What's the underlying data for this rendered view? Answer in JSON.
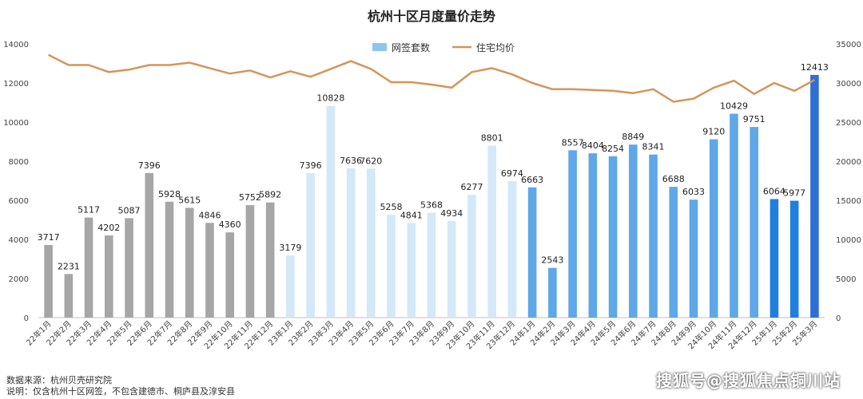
{
  "footer": {
    "source": "数据来源：杭州贝壳研究院",
    "note": "说明：仅含杭州十区网签，不包含建德市、桐庐县及淳安县"
  },
  "watermark": "搜狐号@搜狐焦点铜川站",
  "chart_data": {
    "type": "bar",
    "title": "杭州十区月度量价走势",
    "categories": [
      "22年1月",
      "22年2月",
      "22年3月",
      "22年4月",
      "22年5月",
      "22年6月",
      "22年7月",
      "22年8月",
      "22年9月",
      "22年10月",
      "22年11月",
      "22年12月",
      "23年1月",
      "23年2月",
      "23年3月",
      "23年4月",
      "23年5月",
      "23年6月",
      "23年7月",
      "23年8月",
      "23年9月",
      "23年10月",
      "23年11月",
      "23年12月",
      "24年1月",
      "24年2月",
      "24年3月",
      "24年4月",
      "24年5月",
      "24年6月",
      "24年7月",
      "24年8月",
      "24年9月",
      "24年10月",
      "24年11月",
      "24年12月",
      "25年1月",
      "25年2月",
      "25年3月"
    ],
    "y_left": {
      "min": 0,
      "max": 14000,
      "ticks": [
        0,
        2000,
        4000,
        6000,
        8000,
        10000,
        12000,
        14000
      ]
    },
    "y_right": {
      "min": 0,
      "max": 35000,
      "ticks": [
        0,
        5000,
        10000,
        15000,
        20000,
        25000,
        30000,
        35000
      ]
    },
    "legend_position": "top",
    "grid": false,
    "series": [
      {
        "name": "网签套数",
        "kind": "bar",
        "axis": "left",
        "legend_color": "#8ec5ee",
        "values": [
          3717,
          2231,
          5117,
          4202,
          5087,
          7396,
          5928,
          5615,
          4846,
          4360,
          5752,
          5892,
          3179,
          7396,
          10828,
          7636,
          7620,
          5258,
          4841,
          5368,
          4934,
          6277,
          8801,
          6974,
          6663,
          2543,
          8557,
          8404,
          8254,
          8849,
          8341,
          6688,
          6033,
          9120,
          10429,
          9751,
          6064,
          5977,
          12413
        ],
        "labels": [
          "3717",
          "2231",
          "5117",
          "4202",
          "5087",
          "7396",
          "5928",
          "5615",
          "4846",
          "4360",
          "5752",
          "5892",
          "3179",
          "7396",
          "10828",
          "7636",
          "7620",
          "5258",
          "4841",
          "5368",
          "4934",
          "6277",
          "8801",
          "6974",
          "6663",
          "2543",
          "8557",
          "8404",
          "8254",
          "8849",
          "8341",
          "6688",
          "6033",
          "9120",
          "10429",
          "9751",
          "6064",
          "5977",
          "12413"
        ],
        "group_colors": [
          {
            "from": 0,
            "to": 11,
            "color": "#a6a6a6"
          },
          {
            "from": 12,
            "to": 23,
            "color": "#d3e8f8"
          },
          {
            "from": 24,
            "to": 35,
            "color": "#5ea7e8"
          },
          {
            "from": 36,
            "to": 37,
            "color": "#1f7fe0"
          },
          {
            "from": 38,
            "to": 38,
            "color": "#2e6fd6"
          }
        ]
      },
      {
        "name": "住宅均价",
        "kind": "line",
        "axis": "right",
        "color": "#d4955a",
        "values": [
          33600,
          32300,
          32300,
          31400,
          31700,
          32300,
          32300,
          32600,
          31900,
          31200,
          31600,
          30700,
          31500,
          30800,
          31800,
          32800,
          31800,
          30100,
          30100,
          29800,
          29400,
          31400,
          31900,
          31100,
          30000,
          29200,
          29200,
          29100,
          29000,
          28700,
          29200,
          27600,
          28000,
          29400,
          30300,
          28600,
          30000,
          29000,
          30400
        ]
      }
    ]
  }
}
